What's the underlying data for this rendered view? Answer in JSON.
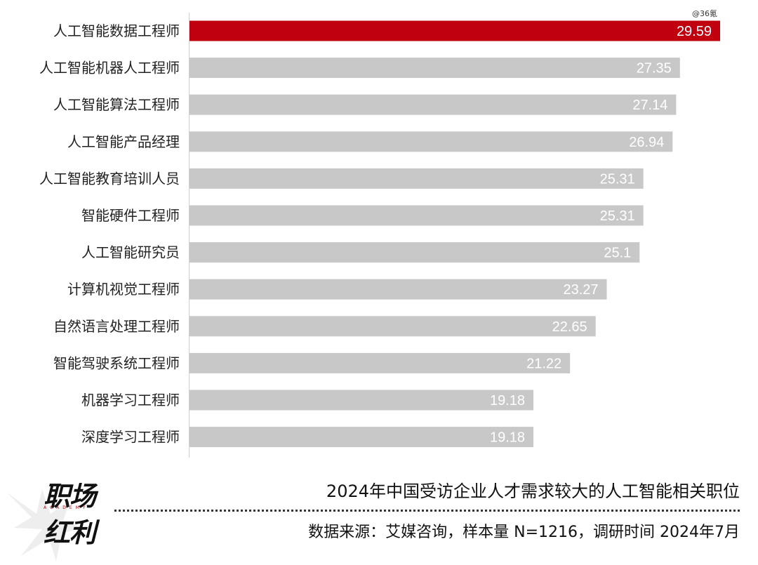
{
  "watermark": "@36氪",
  "logo": {
    "line1": "职场",
    "subline": "ACADEMY",
    "line2": "红利"
  },
  "footer": {
    "title": "2024年中国受访企业人才需求较大的人工智能相关职位",
    "source": "数据来源：艾媒咨询，样本量 N=1216，调研时间 2024年7月"
  },
  "colors": {
    "highlight": "#c0000f",
    "bar": "#c8c8c8",
    "label": "#222222",
    "axis": "#d0d0d0"
  },
  "chart_data": {
    "type": "bar",
    "orientation": "horizontal",
    "title": "2024年中国受访企业人才需求较大的人工智能相关职位",
    "xlabel": "",
    "ylabel": "",
    "xlim": [
      0,
      30.5
    ],
    "categories": [
      "人工智能数据工程师",
      "人工智能机器人工程师",
      "人工智能算法工程师",
      "人工智能产品经理",
      "人工智能教育培训人员",
      "智能硬件工程师",
      "人工智能研究员",
      "计算机视觉工程师",
      "自然语言处理工程师",
      "智能驾驶系统工程师",
      "机器学习工程师",
      "深度学习工程师"
    ],
    "values": [
      29.59,
      27.35,
      27.14,
      26.94,
      25.31,
      25.31,
      25.1,
      23.27,
      22.65,
      21.22,
      19.18,
      19.18
    ],
    "value_labels": [
      "29.59",
      "27.35",
      "27.14",
      "26.94",
      "25.31",
      "25.31",
      "25.1",
      "23.27",
      "22.65",
      "21.22",
      "19.18",
      "19.18"
    ],
    "highlight_index": 0,
    "grid": false,
    "legend": "none"
  }
}
